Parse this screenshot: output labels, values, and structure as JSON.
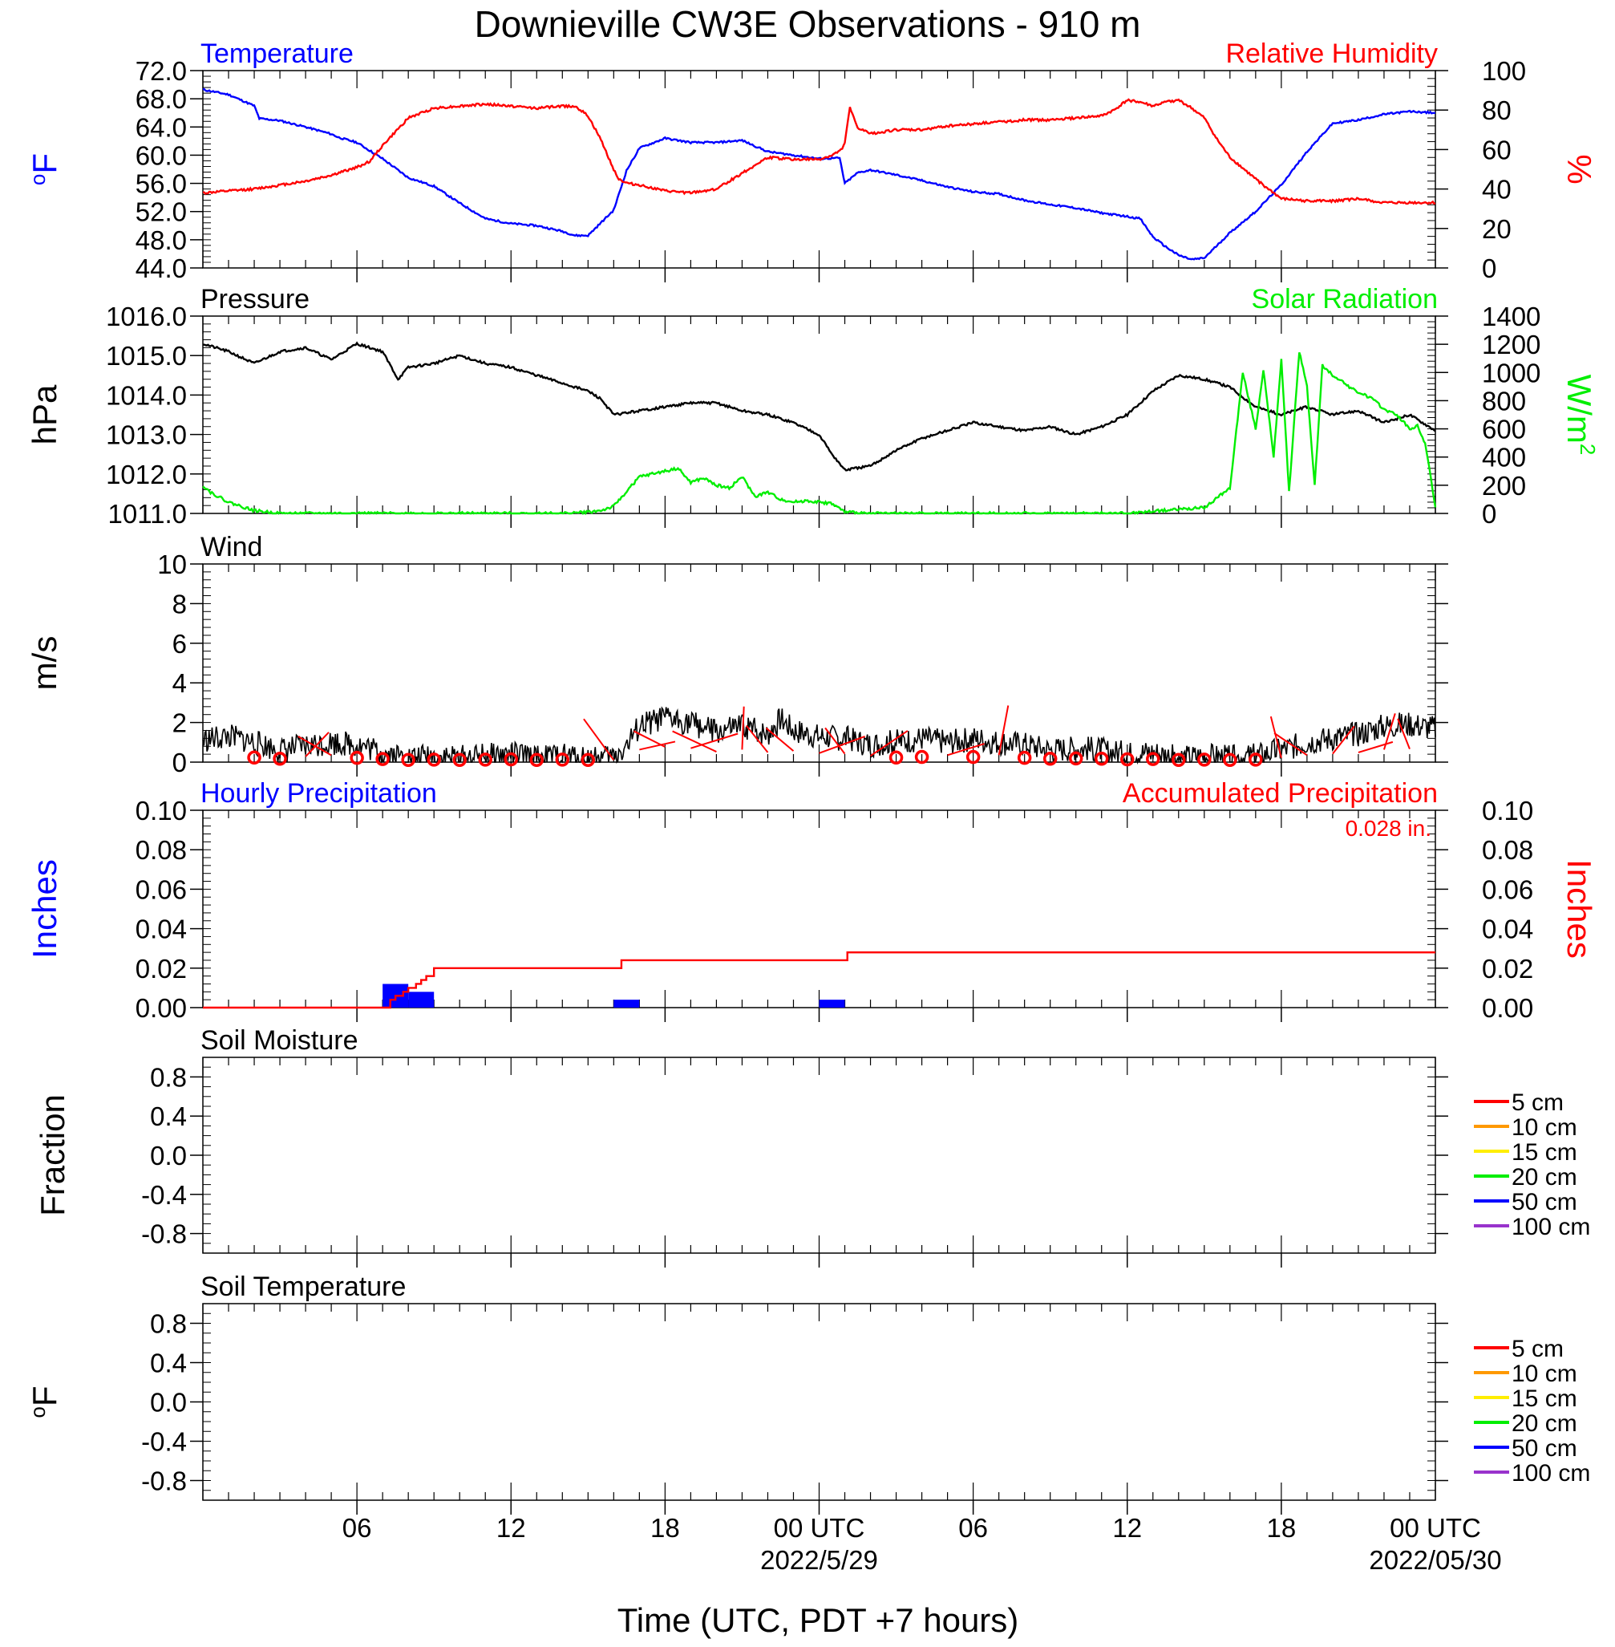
{
  "title": "Downieville CW3E Observations - 910 m",
  "xlabel": "Time (UTC, PDT +7 hours)",
  "colors": {
    "temperature": "#0000ff",
    "humidity": "#ff0000",
    "pressure": "#000000",
    "solar": "#00ee00",
    "wind_speed": "#000000",
    "wind_barb": "#ff0000",
    "hourly_precip": "#0000ff",
    "accum_precip": "#ff0000"
  },
  "legend_colors": [
    "#ff0000",
    "#ff9900",
    "#ffee00",
    "#00ee00",
    "#0000ff",
    "#9933cc"
  ],
  "chart_data": [
    {
      "type": "line",
      "panel": "temperature_humidity",
      "title_left": "Temperature",
      "title_right": "Relative Humidity",
      "ylabel_left": "oF",
      "ylabel_right": "%",
      "ylim_left": [
        44,
        72
      ],
      "yticks_left": [
        "44.0",
        "48.0",
        "52.0",
        "56.0",
        "60.0",
        "64.0",
        "68.0",
        "72.0"
      ],
      "ylim_right": [
        0,
        100
      ],
      "yticks_right": [
        "0",
        "20",
        "40",
        "60",
        "80",
        "100"
      ],
      "xlim_hours": [
        0,
        48
      ],
      "series": [
        {
          "name": "Temperature",
          "axis": "left",
          "x": [
            0,
            1,
            2,
            2.2,
            3,
            4,
            5,
            5.3,
            6,
            7,
            8,
            9,
            10,
            11,
            12,
            13,
            14,
            14.5,
            15,
            15.5,
            16,
            16.5,
            17,
            18,
            19,
            20,
            21,
            22,
            23,
            24,
            24.8,
            25,
            25.5,
            26,
            27,
            28,
            29,
            30,
            31,
            32,
            33,
            34,
            35,
            36,
            36.5,
            37,
            37.5,
            38,
            38.5,
            39,
            40,
            41,
            42,
            43,
            44,
            45,
            46,
            47,
            48
          ],
          "y": [
            69.3,
            68.6,
            67.0,
            65.2,
            64.9,
            64.0,
            63.0,
            62.5,
            61.8,
            59.5,
            56.8,
            55.6,
            53.2,
            51.0,
            50.3,
            50.0,
            49.2,
            48.6,
            48.6,
            50.4,
            52.2,
            57.8,
            61.0,
            62.4,
            61.8,
            61.8,
            62.1,
            60.5,
            60.0,
            59.5,
            59.6,
            56.0,
            57.5,
            57.9,
            57.2,
            56.4,
            55.5,
            54.8,
            54.5,
            53.6,
            53.0,
            52.5,
            51.8,
            51.3,
            51.0,
            48.4,
            47.0,
            45.8,
            45.2,
            45.4,
            49.0,
            52.0,
            55.8,
            60.5,
            64.5,
            65.0,
            65.8,
            66.2,
            66.0
          ]
        },
        {
          "name": "Relative Humidity",
          "axis": "right",
          "x": [
            0,
            1,
            2,
            3,
            4,
            5,
            5.5,
            6,
            6.5,
            7,
            8,
            9,
            10,
            11,
            12,
            13,
            14,
            14.5,
            15,
            15.5,
            16,
            16.2,
            16.5,
            17,
            18,
            19,
            20,
            21,
            22,
            23,
            24,
            24.5,
            24.9,
            25,
            25.2,
            25.5,
            26,
            27,
            28,
            29,
            30,
            31,
            32,
            33,
            34,
            35,
            35.5,
            36,
            36.5,
            37,
            37.5,
            38,
            38.5,
            39,
            39.5,
            40,
            41,
            42,
            43,
            44,
            45,
            46,
            47,
            48
          ],
          "y": [
            38,
            39,
            40,
            42,
            44,
            47,
            49,
            51,
            54,
            62,
            76,
            81,
            82,
            83,
            82,
            81,
            82,
            82,
            77,
            65,
            50,
            45,
            43,
            42,
            39,
            38,
            40,
            48,
            56,
            55,
            55,
            57,
            60,
            64,
            81,
            71,
            68,
            70,
            70,
            72,
            73,
            74,
            75,
            75,
            76,
            77,
            80,
            85,
            84,
            82,
            84,
            85,
            81,
            76,
            65,
            56,
            45,
            35,
            34,
            34,
            35,
            33,
            33,
            33
          ]
        }
      ]
    },
    {
      "type": "line",
      "panel": "pressure_solar",
      "title_left": "Pressure",
      "title_right": "Solar Radiation",
      "ylabel_left": "hPa",
      "ylabel_right": "W/m",
      "ylabel_right_sup": "2",
      "ylim_left": [
        1011,
        1016
      ],
      "yticks_left": [
        "1011.0",
        "1012.0",
        "1013.0",
        "1014.0",
        "1015.0",
        "1016.0"
      ],
      "ylim_right": [
        0,
        1400
      ],
      "yticks_right": [
        "0",
        "200",
        "400",
        "600",
        "800",
        "1000",
        "1200",
        "1400"
      ],
      "xlim_hours": [
        0,
        48
      ],
      "series": [
        {
          "name": "Pressure",
          "axis": "left",
          "x": [
            0,
            1,
            2,
            3,
            4,
            5,
            6,
            7,
            7.6,
            8,
            9,
            10,
            11,
            12,
            13,
            14,
            15,
            15.5,
            16,
            17,
            18,
            19,
            20,
            21,
            22,
            23,
            24,
            24.5,
            25,
            26,
            27,
            28,
            29,
            30,
            31,
            32,
            33,
            34,
            35,
            36,
            37,
            38,
            39,
            40,
            41,
            42,
            43,
            44,
            45,
            46,
            47,
            48
          ],
          "y": [
            1015.3,
            1015.1,
            1014.8,
            1015.1,
            1015.2,
            1014.9,
            1015.3,
            1015.1,
            1014.4,
            1014.7,
            1014.8,
            1015.0,
            1014.8,
            1014.7,
            1014.5,
            1014.3,
            1014.1,
            1013.9,
            1013.5,
            1013.6,
            1013.7,
            1013.8,
            1013.8,
            1013.6,
            1013.5,
            1013.3,
            1013.0,
            1012.5,
            1012.1,
            1012.2,
            1012.6,
            1012.9,
            1013.1,
            1013.3,
            1013.2,
            1013.1,
            1013.2,
            1013.0,
            1013.2,
            1013.5,
            1014.1,
            1014.5,
            1014.4,
            1014.2,
            1013.7,
            1013.5,
            1013.7,
            1013.5,
            1013.6,
            1013.3,
            1013.5,
            1013.1
          ]
        },
        {
          "name": "Solar Radiation",
          "axis": "right",
          "x": [
            0,
            0.3,
            1,
            2,
            3,
            4,
            5,
            6,
            8,
            10,
            12,
            13,
            14,
            15,
            15.5,
            16,
            17,
            18,
            18.5,
            19,
            19.5,
            20,
            20.5,
            21,
            21.5,
            22,
            22.5,
            23,
            23.5,
            24,
            24.5,
            25,
            26,
            28,
            30,
            32,
            34,
            36,
            38,
            39,
            40,
            40.5,
            41,
            41.3,
            41.7,
            42,
            42.3,
            42.7,
            43,
            43.3,
            43.6,
            44,
            44.3,
            44.6,
            45,
            45.5,
            46,
            46.5,
            47,
            47.3,
            47.6,
            48
          ],
          "y": [
            200,
            150,
            80,
            20,
            0,
            0,
            0,
            0,
            0,
            0,
            0,
            0,
            0,
            10,
            20,
            50,
            260,
            300,
            320,
            220,
            250,
            200,
            180,
            260,
            120,
            150,
            100,
            80,
            90,
            80,
            70,
            10,
            0,
            0,
            0,
            0,
            0,
            0,
            30,
            40,
            180,
            1000,
            600,
            1020,
            400,
            1100,
            150,
            1150,
            900,
            200,
            1050,
            980,
            950,
            900,
            860,
            820,
            740,
            700,
            600,
            620,
            500,
            50
          ]
        }
      ]
    },
    {
      "type": "line",
      "panel": "wind",
      "title_left": "Wind",
      "ylabel_left": "m/s",
      "ylim_left": [
        0,
        10
      ],
      "yticks_left": [
        "0",
        "2",
        "4",
        "6",
        "8",
        "10"
      ],
      "xlim_hours": [
        0,
        48
      ],
      "series": [
        {
          "name": "Wind Speed",
          "axis": "left",
          "x": [
            0,
            1,
            2,
            3,
            4,
            5,
            6,
            7,
            8,
            9,
            10,
            11,
            12,
            13,
            14,
            15,
            15.5,
            16,
            16.5,
            17,
            18,
            19,
            20,
            21,
            22,
            22.5,
            23,
            24,
            25,
            26,
            27,
            28,
            29,
            30,
            31,
            32,
            33,
            34,
            35,
            36,
            37,
            38,
            39,
            40,
            41,
            42,
            43,
            44,
            45,
            46,
            47,
            48
          ],
          "y": [
            1.1,
            1.3,
            1.0,
            0.6,
            0.8,
            1.0,
            0.9,
            0.5,
            0.2,
            0.3,
            0.2,
            0.3,
            0.4,
            0.2,
            0.3,
            0.2,
            0.2,
            0.3,
            0.8,
            1.8,
            2.2,
            2.0,
            1.5,
            1.8,
            1.4,
            2.2,
            1.6,
            1.3,
            1.2,
            0.9,
            1.0,
            1.2,
            1.0,
            1.2,
            1.0,
            0.9,
            0.6,
            0.7,
            0.6,
            0.4,
            0.5,
            0.2,
            0.3,
            0.2,
            0.3,
            0.6,
            1.0,
            1.2,
            1.4,
            1.8,
            1.9,
            1.7
          ]
        }
      ],
      "barbs_hours": [
        2,
        3,
        4,
        5,
        6,
        7,
        8,
        9,
        10,
        11,
        12,
        13,
        14,
        15,
        16,
        17,
        18,
        19,
        20,
        21,
        22,
        23,
        24,
        25,
        26,
        27,
        28,
        29,
        30,
        31,
        32,
        33,
        34,
        35,
        36,
        37,
        38,
        39,
        40,
        41,
        42,
        43,
        44,
        45,
        46,
        47
      ],
      "calm_hours": [
        2,
        3,
        6,
        7,
        8,
        9,
        10,
        11,
        12,
        13,
        14,
        15,
        27,
        28,
        30,
        32,
        33,
        34,
        35,
        36,
        37,
        38,
        39,
        40,
        41
      ]
    },
    {
      "type": "bar",
      "panel": "precipitation",
      "title_left": "Hourly Precipitation",
      "title_right": "Accumulated Precipitation",
      "total_label": "0.028 in.",
      "ylabel_left": "Inches",
      "ylabel_right": "Inches",
      "ylim_left": [
        0,
        0.1
      ],
      "yticks_left": [
        "0.00",
        "0.02",
        "0.04",
        "0.06",
        "0.08",
        "0.10"
      ],
      "ylim_right": [
        0,
        0.1
      ],
      "yticks_right": [
        "0.00",
        "0.02",
        "0.04",
        "0.06",
        "0.08",
        "0.10"
      ],
      "xlim_hours": [
        0,
        48
      ],
      "hourly_bars": [
        {
          "start": 7,
          "end": 8,
          "value": 0.012
        },
        {
          "start": 8,
          "end": 9,
          "value": 0.008
        },
        {
          "start": 16,
          "end": 17,
          "value": 0.004
        },
        {
          "start": 24,
          "end": 25,
          "value": 0.004
        }
      ],
      "accum_series": {
        "name": "Accumulated Precipitation",
        "x": [
          0,
          7,
          7.3,
          7.5,
          7.8,
          8.0,
          8.3,
          8.5,
          8.7,
          9.0,
          16.2,
          16.3,
          25.0,
          25.1,
          48
        ],
        "y": [
          0,
          0,
          0.004,
          0.006,
          0.008,
          0.01,
          0.012,
          0.014,
          0.016,
          0.02,
          0.02,
          0.024,
          0.024,
          0.028,
          0.028
        ]
      }
    },
    {
      "type": "line",
      "panel": "soil_moisture",
      "title_left": "Soil Moisture",
      "ylabel_left": "Fraction",
      "ylim_left": [
        -1,
        1
      ],
      "yticks_left": [
        "-0.8",
        "-0.4",
        "0.0",
        "0.4",
        "0.8"
      ],
      "xlim_hours": [
        0,
        48
      ],
      "legend": [
        "5 cm",
        "10 cm",
        "15 cm",
        "20 cm",
        "50 cm",
        "100 cm"
      ],
      "legend_position": "right",
      "series": []
    },
    {
      "type": "line",
      "panel": "soil_temperature",
      "title_left": "Soil Temperature",
      "ylabel_left": "oF",
      "ylim_left": [
        -1,
        1
      ],
      "yticks_left": [
        "-0.8",
        "-0.4",
        "0.0",
        "0.4",
        "0.8"
      ],
      "xlim_hours": [
        0,
        48
      ],
      "legend": [
        "5 cm",
        "10 cm",
        "15 cm",
        "20 cm",
        "50 cm",
        "100 cm"
      ],
      "legend_position": "right",
      "series": []
    }
  ],
  "x_ticks": [
    {
      "hour": 6,
      "label": "06",
      "date": ""
    },
    {
      "hour": 12,
      "label": "12",
      "date": ""
    },
    {
      "hour": 18,
      "label": "18",
      "date": ""
    },
    {
      "hour": 24,
      "label": "00 UTC",
      "date": "2022/5/29"
    },
    {
      "hour": 30,
      "label": "06",
      "date": ""
    },
    {
      "hour": 36,
      "label": "12",
      "date": ""
    },
    {
      "hour": 42,
      "label": "18",
      "date": ""
    },
    {
      "hour": 48,
      "label": "00 UTC",
      "date": "2022/05/30"
    }
  ]
}
